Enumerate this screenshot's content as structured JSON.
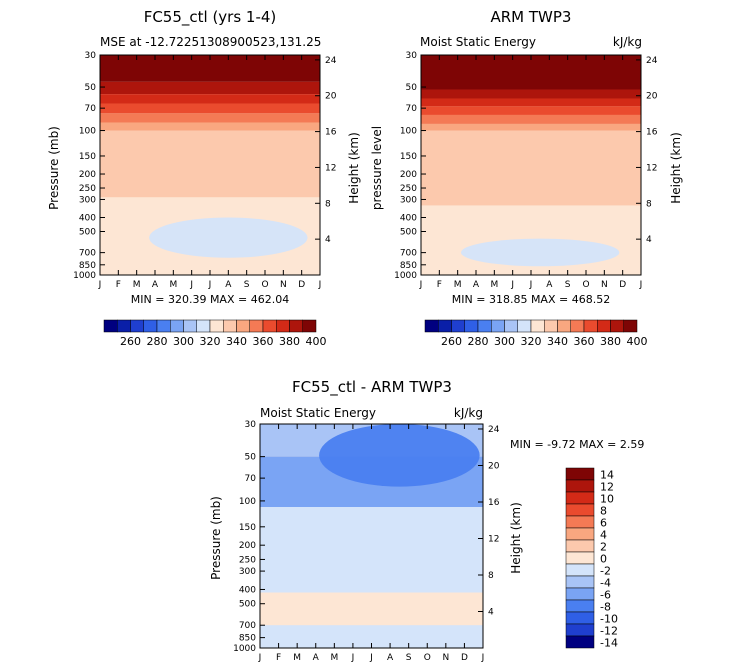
{
  "chart_data": [
    {
      "type": "heatmap",
      "title": "FC55_ctl (yrs 1-4)",
      "subtitle_left": "MSE at -12.72251308900523,131.25",
      "subtitle_right": "",
      "xlabel": "",
      "ylabel": "Pressure (mb)",
      "ylabel_right": "Height (km)",
      "x": [
        "J",
        "F",
        "M",
        "A",
        "M",
        "J",
        "J",
        "A",
        "S",
        "O",
        "N",
        "D",
        "J"
      ],
      "y_ticks": [
        30,
        50,
        70,
        100,
        150,
        200,
        250,
        300,
        400,
        500,
        700,
        850,
        1000
      ],
      "y_right_ticks": [
        24,
        20,
        16,
        12,
        8,
        4
      ],
      "stats": "MIN = 320.39 MAX = 462.04",
      "levels": [
        {
          "top": 30,
          "bottom": 46,
          "value": 410
        },
        {
          "top": 46,
          "bottom": 56,
          "value": 390
        },
        {
          "top": 56,
          "bottom": 65,
          "value": 380
        },
        {
          "top": 65,
          "bottom": 76,
          "value": 370
        },
        {
          "top": 76,
          "bottom": 88,
          "value": 360
        },
        {
          "top": 88,
          "bottom": 100,
          "value": 350
        },
        {
          "top": 100,
          "bottom": 290,
          "value": 345
        },
        {
          "top": 290,
          "bottom": 700,
          "value": 335
        },
        {
          "top": 700,
          "bottom": 1000,
          "value": 330
        }
      ],
      "blob": {
        "x_center": 7.0,
        "p_top": 400,
        "p_bottom": 760,
        "value": 325
      }
    },
    {
      "type": "heatmap",
      "title": "ARM TWP3",
      "subtitle_left": "Moist Static Energy",
      "subtitle_right": "kJ/kg",
      "xlabel": "",
      "ylabel": "pressure level",
      "ylabel_right": "Height (km)",
      "x": [
        "J",
        "F",
        "M",
        "A",
        "M",
        "J",
        "J",
        "A",
        "S",
        "O",
        "N",
        "D",
        "J"
      ],
      "y_ticks": [
        30,
        50,
        70,
        100,
        150,
        200,
        250,
        300,
        400,
        500,
        700,
        850,
        1000
      ],
      "y_right_ticks": [
        24,
        20,
        16,
        12,
        8,
        4
      ],
      "stats": "MIN = 318.85 MAX = 468.52",
      "levels": [
        {
          "top": 30,
          "bottom": 52,
          "value": 410
        },
        {
          "top": 52,
          "bottom": 60,
          "value": 390
        },
        {
          "top": 60,
          "bottom": 68,
          "value": 380
        },
        {
          "top": 68,
          "bottom": 78,
          "value": 370
        },
        {
          "top": 78,
          "bottom": 90,
          "value": 360
        },
        {
          "top": 90,
          "bottom": 100,
          "value": 350
        },
        {
          "top": 100,
          "bottom": 330,
          "value": 345
        },
        {
          "top": 330,
          "bottom": 1000,
          "value": 335
        }
      ],
      "blob": {
        "x_center": 6.5,
        "p_top": 560,
        "p_bottom": 870,
        "value": 325
      }
    },
    {
      "type": "heatmap",
      "title": "FC55_ctl - ARM TWP3",
      "subtitle_left": "Moist Static Energy",
      "subtitle_right": "kJ/kg",
      "xlabel": "",
      "ylabel": "Pressure (mb)",
      "ylabel_right": "Height (km)",
      "x": [
        "J",
        "F",
        "M",
        "A",
        "M",
        "J",
        "J",
        "A",
        "S",
        "O",
        "N",
        "D",
        "J"
      ],
      "y_ticks": [
        30,
        50,
        70,
        100,
        150,
        200,
        250,
        300,
        400,
        500,
        700,
        850,
        1000
      ],
      "y_right_ticks": [
        24,
        20,
        16,
        12,
        8,
        4
      ],
      "stats": "MIN = -9.72 MAX = 2.59",
      "levels": [
        {
          "top": 30,
          "bottom": 50,
          "value": -5
        },
        {
          "top": 50,
          "bottom": 110,
          "value": -7
        },
        {
          "top": 110,
          "bottom": 420,
          "value": -3
        },
        {
          "top": 420,
          "bottom": 700,
          "value": -1
        },
        {
          "top": 700,
          "bottom": 1000,
          "value": -3
        }
      ],
      "blob": {
        "x_center": 7.5,
        "p_top": 30,
        "p_bottom": 80,
        "value": -9
      }
    }
  ],
  "colorbar_top": {
    "labels": [
      "260",
      "280",
      "300",
      "320",
      "340",
      "360",
      "380",
      "400"
    ],
    "colors": [
      "#000080",
      "#0a1fa8",
      "#1f3fcf",
      "#2f5fe6",
      "#4a7ff0",
      "#7aa4f4",
      "#a9c4f6",
      "#d4e4fa",
      "#fde6d4",
      "#fcc9ad",
      "#f9a780",
      "#f47a55",
      "#ea4b2e",
      "#d32a17",
      "#ad150c",
      "#7e0505"
    ]
  },
  "colorbar_diff": {
    "labels": [
      "14",
      "12",
      "10",
      "8",
      "6",
      "4",
      "2",
      "0",
      "-2",
      "-4",
      "-6",
      "-8",
      "-10",
      "-12",
      "-14"
    ],
    "colors": [
      "#7e0505",
      "#ad150c",
      "#d32a17",
      "#ea4b2e",
      "#f47a55",
      "#f9a780",
      "#fcc9ad",
      "#fde6d4",
      "#d4e4fa",
      "#a9c4f6",
      "#7aa4f4",
      "#4a7ff0",
      "#2f5fe6",
      "#1f3fcf",
      "#000080"
    ]
  }
}
